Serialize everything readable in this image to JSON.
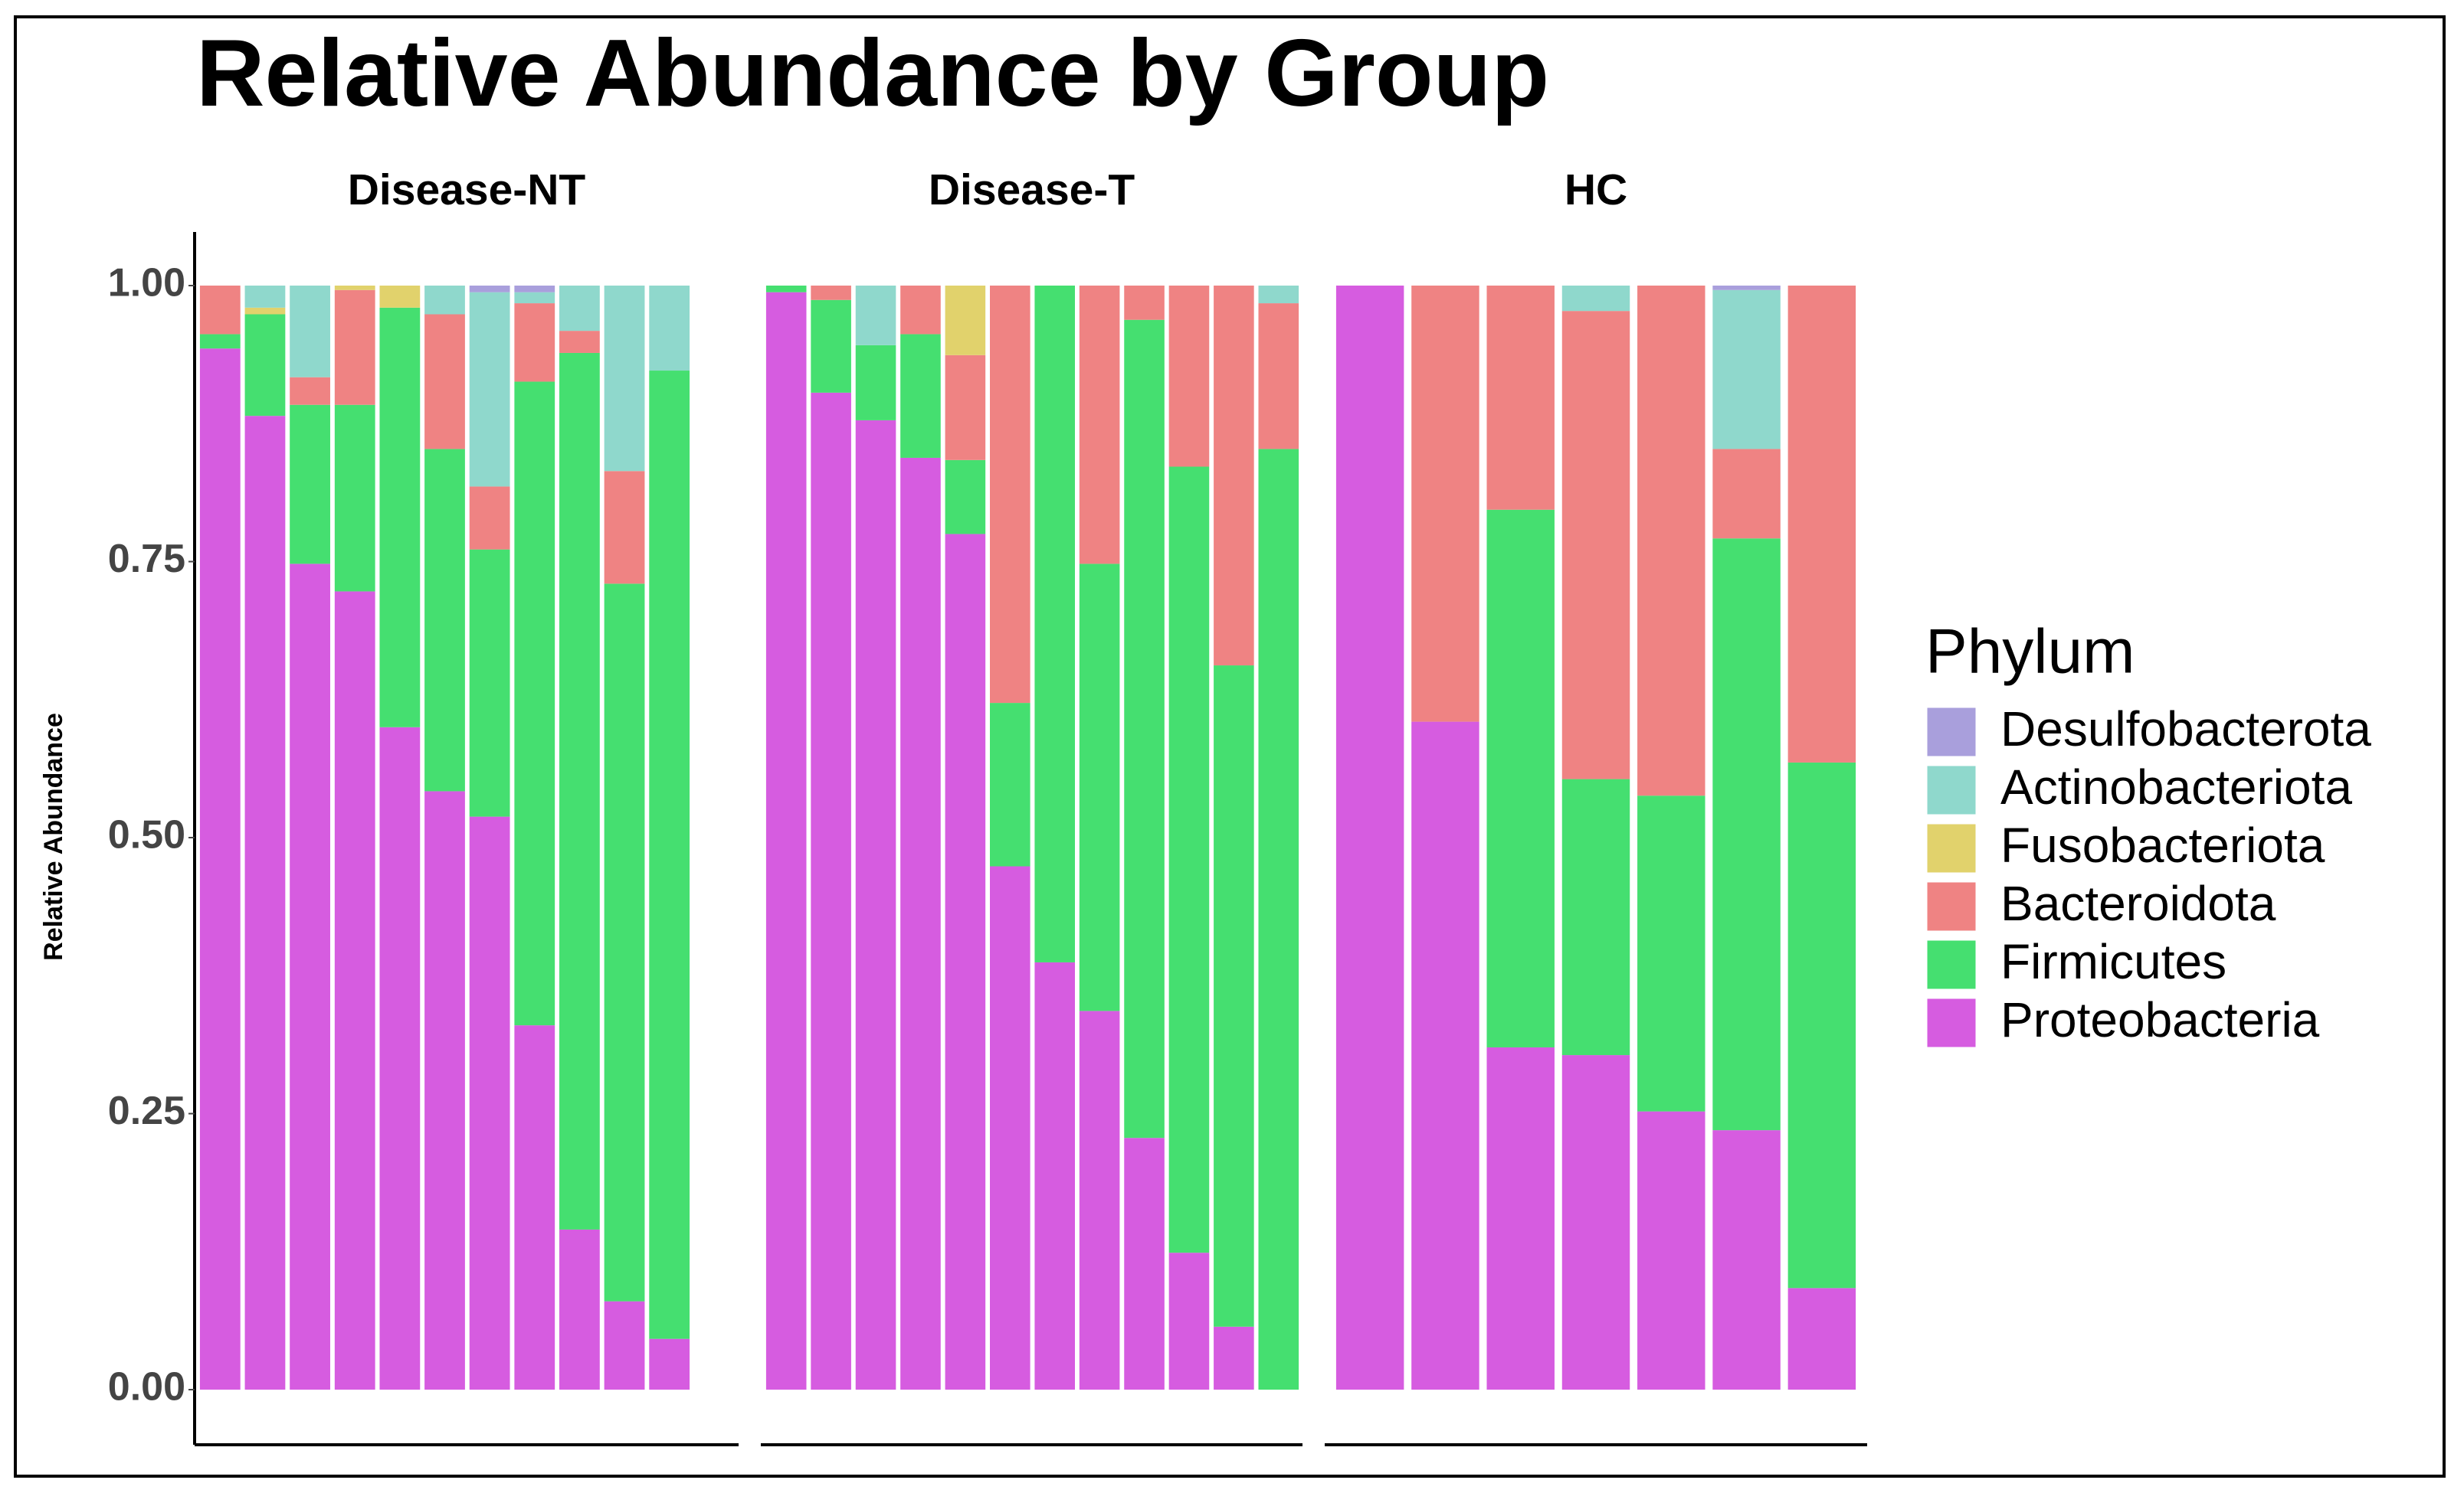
{
  "chart_data": {
    "type": "stacked_bar",
    "title": "Relative Abundance by Group",
    "y_label": "Relative Abundance",
    "ylim": [
      0,
      1
    ],
    "yticks": [
      {
        "value": 0,
        "label": "0.00"
      },
      {
        "value": 0.25,
        "label": "0.25"
      },
      {
        "value": 0.5,
        "label": "0.50"
      },
      {
        "value": 0.75,
        "label": "0.75"
      },
      {
        "value": 1,
        "label": "1.00"
      }
    ],
    "legend_title": "Phylum",
    "series": [
      {
        "name": "Proteobacteria",
        "color": "#d65ce0"
      },
      {
        "name": "Firmicutes",
        "color": "#45df70"
      },
      {
        "name": "Bacteroidota",
        "color": "#ef8383"
      },
      {
        "name": "Fusobacteriota",
        "color": "#e1d26c"
      },
      {
        "name": "Actinobacteriota",
        "color": "#8fd8cc"
      },
      {
        "name": "Desulfobacterota",
        "color": "#a99fdc"
      }
    ],
    "facets": [
      {
        "title": "Disease-NT",
        "categories": [
          null,
          null,
          null,
          null,
          null,
          null,
          null,
          null,
          null,
          null,
          null
        ],
        "values": [
          [
            0.943,
            0.882,
            0.748,
            0.723,
            0.6,
            0.542,
            0.519,
            0.33,
            0.145,
            0.08,
            0.046
          ],
          [
            0.013,
            0.092,
            0.144,
            0.169,
            0.38,
            0.31,
            0.242,
            0.583,
            0.794,
            0.65,
            0.877
          ],
          [
            0.044,
            0,
            0.025,
            0.104,
            0,
            0.122,
            0.057,
            0.071,
            0.02,
            0.102,
            0
          ],
          [
            0,
            0.006,
            0,
            0.004,
            0.02,
            0,
            0,
            0,
            0,
            0,
            0
          ],
          [
            0,
            0.02,
            0.083,
            0,
            0,
            0.026,
            0.176,
            0.01,
            0.041,
            0.168,
            0.077
          ],
          [
            0,
            0,
            0,
            0,
            0,
            0,
            0.006,
            0.006,
            0,
            0,
            0
          ]
        ]
      },
      {
        "title": "Disease-T",
        "categories": [
          null,
          null,
          null,
          null,
          null,
          null,
          null,
          null,
          null,
          null,
          null,
          null
        ],
        "values": [
          [
            0.994,
            0.903,
            0.878,
            0.844,
            0.775,
            0.474,
            0.387,
            0.343,
            0.228,
            0.124,
            0.057,
            0
          ],
          [
            0.006,
            0.084,
            0.068,
            0.112,
            0.067,
            0.148,
            0.613,
            0.405,
            0.741,
            0.712,
            0.599,
            0.852
          ],
          [
            0,
            0.013,
            0,
            0.044,
            0.095,
            0.378,
            0,
            0.252,
            0.031,
            0.164,
            0.344,
            0.132
          ],
          [
            0,
            0,
            0,
            0,
            0.063,
            0,
            0,
            0,
            0,
            0,
            0,
            0
          ],
          [
            0,
            0,
            0.054,
            0,
            0,
            0,
            0,
            0,
            0,
            0,
            0,
            0.016
          ],
          [
            0,
            0,
            0,
            0,
            0,
            0,
            0,
            0,
            0,
            0,
            0,
            0
          ]
        ]
      },
      {
        "title": "HC",
        "categories": [
          null,
          null,
          null,
          null,
          null,
          null,
          null
        ],
        "values": [
          [
            1.0,
            0.605,
            0.31,
            0.303,
            0.252,
            0.235,
            0.092
          ],
          [
            0,
            0,
            0.487,
            0.25,
            0.286,
            0.536,
            0.476
          ],
          [
            0,
            0.395,
            0.203,
            0.424,
            0.462,
            0.081,
            0.432
          ],
          [
            0,
            0,
            0,
            0,
            0,
            0,
            0
          ],
          [
            0,
            0,
            0,
            0.023,
            0,
            0.144,
            0
          ],
          [
            0,
            0,
            0,
            0,
            0,
            0.004,
            0
          ]
        ]
      }
    ]
  }
}
